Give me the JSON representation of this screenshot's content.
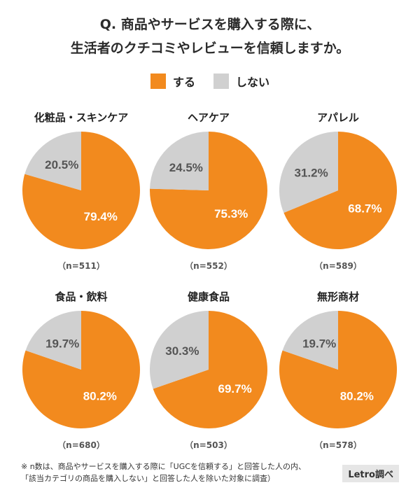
{
  "title_line1": "Q. 商品やサービスを購入する際に、",
  "title_line2": "生活者のクチコミやレビューを信頼しますか。",
  "legend": [
    {
      "label": "する",
      "color": "#F28A1E"
    },
    {
      "label": "しない",
      "color": "#D0D0D0"
    }
  ],
  "chart_data": [
    {
      "type": "pie",
      "title": "化粧品・スキンケア",
      "categories": [
        "する",
        "しない"
      ],
      "values": [
        79.4,
        20.5
      ],
      "labels": [
        "79.4%",
        "20.5%"
      ],
      "n": "（n=511）"
    },
    {
      "type": "pie",
      "title": "ヘアケア",
      "categories": [
        "する",
        "しない"
      ],
      "values": [
        75.3,
        24.5
      ],
      "labels": [
        "75.3%",
        "24.5%"
      ],
      "n": "（n=552）"
    },
    {
      "type": "pie",
      "title": "アパレル",
      "categories": [
        "する",
        "しない"
      ],
      "values": [
        68.7,
        31.2
      ],
      "labels": [
        "68.7%",
        "31.2%"
      ],
      "n": "（n=589）"
    },
    {
      "type": "pie",
      "title": "食品・飲料",
      "categories": [
        "する",
        "しない"
      ],
      "values": [
        80.2,
        19.7
      ],
      "labels": [
        "80.2%",
        "19.7%"
      ],
      "n": "（n=680）"
    },
    {
      "type": "pie",
      "title": "健康食品",
      "categories": [
        "する",
        "しない"
      ],
      "values": [
        69.7,
        30.3
      ],
      "labels": [
        "69.7%",
        "30.3%"
      ],
      "n": "（n=503）"
    },
    {
      "type": "pie",
      "title": "無形商材",
      "categories": [
        "する",
        "しない"
      ],
      "values": [
        80.2,
        19.7
      ],
      "labels": [
        "80.2%",
        "19.7%"
      ],
      "n": "（n=578）"
    }
  ],
  "footnote_line1": "※ n数は、商品やサービスを購入する際に「UGCを信頼する」と回答した人の内、",
  "footnote_line2": "「該当カテゴリの商品を購入しない」と回答した人を除いた対象に調査）",
  "credit": "Letro調べ"
}
